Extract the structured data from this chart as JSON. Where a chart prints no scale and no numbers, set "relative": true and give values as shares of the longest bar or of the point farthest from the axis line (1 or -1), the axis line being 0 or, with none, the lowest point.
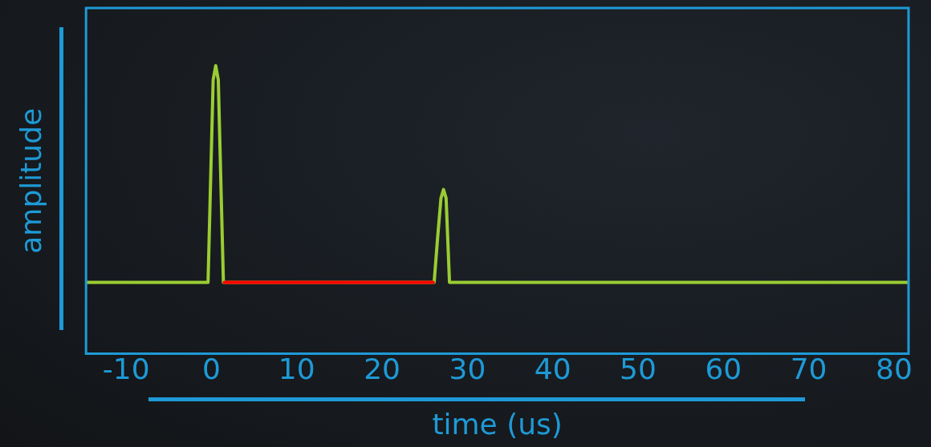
{
  "chart_data": {
    "type": "line",
    "xlabel": "time (us)",
    "ylabel": "amplitude",
    "relative": true,
    "xlim": [
      -14.7,
      81.7
    ],
    "xticks": [
      -10,
      0,
      10,
      20,
      30,
      40,
      50,
      60,
      70,
      80
    ],
    "grid": false,
    "legend": false,
    "marker": "none",
    "line_style": "solid",
    "series": [
      {
        "color": "#9acd32",
        "x": [
          -14.7,
          -0.4,
          0.2,
          0.5,
          0.8,
          1.4,
          26.1,
          26.5,
          26.9,
          27.2,
          27.5,
          27.9,
          81.7
        ],
        "values": [
          0.248,
          0.248,
          0.95,
          1,
          0.95,
          0.248,
          0.248,
          0.4,
          0.54,
          0.57,
          0.54,
          0.248,
          0.248
        ]
      },
      {
        "color": "#ff0000",
        "x": [
          1.5,
          26
        ],
        "values": [
          0.248,
          0.248
        ]
      }
    ]
  }
}
